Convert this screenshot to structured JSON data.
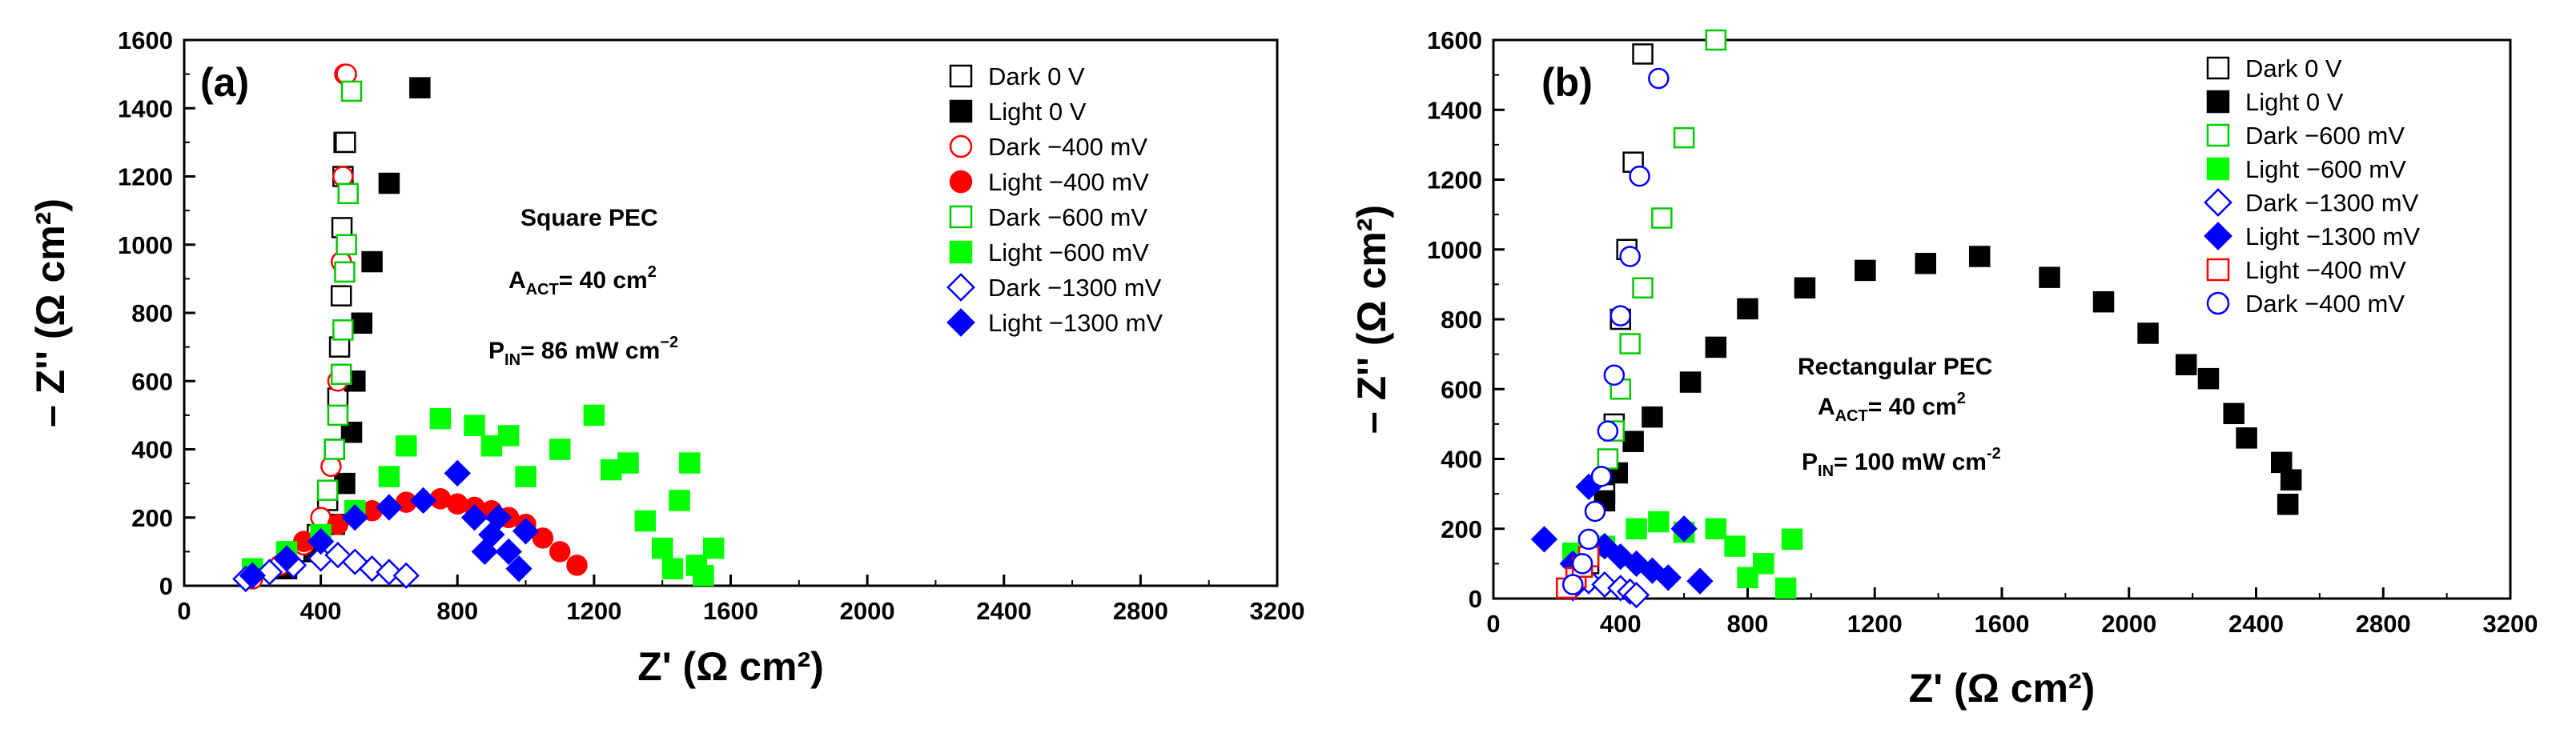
{
  "chart_data": [
    {
      "type": "scatter",
      "panel_label": "(a)",
      "xlabel": "Z' (Ω cm²)",
      "ylabel": "– Z'' (Ω cm²)",
      "xlim": [
        0,
        3200
      ],
      "ylim": [
        0,
        1600
      ],
      "xticks": [
        "0",
        "400",
        "800",
        "1200",
        "1600",
        "2000",
        "2400",
        "2800",
        "3200"
      ],
      "yticks": [
        "0",
        "200",
        "400",
        "600",
        "800",
        "1000",
        "1200",
        "1400",
        "1600"
      ],
      "grid": false,
      "legend_position": "top-right",
      "annotations": [
        {
          "text": "Square PEC"
        },
        {
          "prefix": "A",
          "sub": "ACT",
          "suffix": "= 40 cm",
          "sup": "2"
        },
        {
          "prefix": "P",
          "sub": "IN",
          "suffix": "= 86 mW cm",
          "sup": "−2"
        }
      ],
      "series": [
        {
          "name": "Dark 0 V",
          "marker": "square",
          "filled": false,
          "color": "#000000",
          "x": [
            290,
            350,
            390,
            420,
            440,
            450,
            455,
            460,
            462,
            465,
            468,
            472
          ],
          "y": [
            50,
            100,
            150,
            250,
            400,
            550,
            700,
            850,
            1050,
            1200,
            1300,
            1300
          ]
        },
        {
          "name": "Light 0 V",
          "marker": "square",
          "filled": true,
          "color": "#000000",
          "x": [
            300,
            380,
            440,
            470,
            490,
            500,
            520,
            550,
            600,
            690
          ],
          "y": [
            50,
            100,
            180,
            300,
            450,
            600,
            770,
            950,
            1180,
            1460
          ]
        },
        {
          "name": "Dark −400 mV",
          "marker": "circle",
          "filled": false,
          "color": "#ff0000",
          "x": [
            200,
            280,
            350,
            400,
            430,
            450,
            460,
            465,
            470,
            475
          ],
          "y": [
            20,
            60,
            120,
            200,
            350,
            600,
            950,
            1200,
            1500,
            1500
          ]
        },
        {
          "name": "Light −400 mV",
          "marker": "circle",
          "filled": true,
          "color": "#ff0000",
          "x": [
            350,
            450,
            550,
            650,
            750,
            800,
            850,
            900,
            950,
            1000,
            1050,
            1100,
            1150
          ],
          "y": [
            130,
            180,
            220,
            245,
            255,
            240,
            230,
            220,
            200,
            180,
            140,
            100,
            60
          ]
        },
        {
          "name": "Dark −600 mV",
          "marker": "square",
          "filled": false,
          "color": "#00cc00",
          "x": [
            420,
            440,
            450,
            460,
            465,
            470,
            475,
            480,
            490
          ],
          "y": [
            280,
            400,
            500,
            620,
            750,
            920,
            1000,
            1150,
            1450
          ]
        },
        {
          "name": "Light −600 mV",
          "marker": "square",
          "filled": true,
          "color": "#00ff00",
          "x": [
            200,
            300,
            400,
            500,
            600,
            650,
            750,
            850,
            900,
            950,
            1000,
            1100,
            1200,
            1250,
            1300,
            1350,
            1400,
            1430,
            1450,
            1480,
            1500,
            1520,
            1550
          ],
          "y": [
            50,
            100,
            150,
            220,
            320,
            410,
            490,
            470,
            410,
            440,
            320,
            400,
            500,
            340,
            360,
            190,
            110,
            50,
            250,
            360,
            60,
            30,
            110
          ]
        },
        {
          "name": "Dark −1300 mV",
          "marker": "diamond",
          "filled": false,
          "color": "#0000ff",
          "x": [
            180,
            250,
            320,
            400,
            450,
            500,
            550,
            600,
            650
          ],
          "y": [
            20,
            40,
            60,
            80,
            90,
            70,
            50,
            40,
            30
          ]
        },
        {
          "name": "Light −1300 mV",
          "marker": "diamond",
          "filled": true,
          "color": "#0000ff",
          "x": [
            200,
            300,
            400,
            500,
            600,
            700,
            800,
            850,
            880,
            900,
            920,
            950,
            980,
            1000
          ],
          "y": [
            30,
            80,
            130,
            200,
            230,
            250,
            330,
            200,
            100,
            150,
            200,
            100,
            50,
            160
          ]
        }
      ]
    },
    {
      "type": "scatter",
      "panel_label": "(b)",
      "xlabel": "Z' (Ω cm²)",
      "ylabel": "– Z'' (Ω cm²)",
      "xlim": [
        0,
        3200
      ],
      "ylim": [
        0,
        1600
      ],
      "xticks": [
        "0",
        "400",
        "800",
        "1200",
        "1600",
        "2000",
        "2400",
        "2800",
        "3200"
      ],
      "yticks": [
        "0",
        "200",
        "400",
        "600",
        "800",
        "1000",
        "1200",
        "1400",
        "1600"
      ],
      "grid": false,
      "legend_position": "top-right",
      "annotations": [
        {
          "text": "Rectangular PEC"
        },
        {
          "prefix": "A",
          "sub": "ACT",
          "suffix": "= 40 cm",
          "sup": "2"
        },
        {
          "prefix": "P",
          "sub": "IN",
          "suffix": "= 100 mW cm",
          "sup": "-2"
        }
      ],
      "series": [
        {
          "name": "Dark 0 V",
          "marker": "square",
          "filled": false,
          "color": "#000000",
          "x": [
            300,
            350,
            380,
            400,
            420,
            440,
            470
          ],
          "y": [
            100,
            300,
            500,
            800,
            1000,
            1250,
            1560
          ]
        },
        {
          "name": "Light 0 V",
          "marker": "square",
          "filled": true,
          "color": "#000000",
          "x": [
            300,
            350,
            390,
            440,
            500,
            620,
            700,
            800,
            980,
            1170,
            1360,
            1530,
            1750,
            1920,
            2060,
            2180,
            2250,
            2330,
            2370,
            2480,
            2500,
            2510
          ],
          "y": [
            150,
            280,
            360,
            450,
            520,
            620,
            720,
            830,
            890,
            940,
            960,
            980,
            920,
            850,
            760,
            670,
            630,
            530,
            460,
            390,
            270,
            340
          ]
        },
        {
          "name": "Dark −600 mV",
          "marker": "square",
          "filled": false,
          "color": "#00cc00",
          "x": [
            360,
            380,
            400,
            430,
            470,
            530,
            600,
            700
          ],
          "y": [
            400,
            480,
            600,
            730,
            890,
            1090,
            1320,
            1600
          ]
        },
        {
          "name": "Light −600 mV",
          "marker": "square",
          "filled": true,
          "color": "#00ff00",
          "x": [
            250,
            350,
            450,
            520,
            600,
            700,
            760,
            800,
            850,
            920,
            940
          ],
          "y": [
            130,
            150,
            200,
            220,
            190,
            200,
            150,
            60,
            100,
            30,
            170
          ]
        },
        {
          "name": "Dark −1300 mV",
          "marker": "diamond",
          "filled": false,
          "color": "#0000ff",
          "x": [
            250,
            300,
            350,
            400,
            430,
            450
          ],
          "y": [
            30,
            50,
            40,
            30,
            20,
            10
          ]
        },
        {
          "name": "Light −1300 mV",
          "marker": "diamond",
          "filled": true,
          "color": "#0000ff",
          "x": [
            160,
            250,
            300,
            350,
            400,
            450,
            500,
            550,
            600,
            650
          ],
          "y": [
            170,
            100,
            320,
            150,
            120,
            100,
            80,
            60,
            200,
            50
          ]
        },
        {
          "name": "Light −400 mV",
          "marker": "square",
          "filled": false,
          "color": "#ff0000",
          "x": [
            230,
            260,
            280,
            300
          ],
          "y": [
            30,
            60,
            90,
            120
          ]
        },
        {
          "name": "Dark −400 mV",
          "marker": "circle",
          "filled": false,
          "color": "#0000ff",
          "x": [
            250,
            280,
            300,
            320,
            340,
            360,
            380,
            400,
            430,
            460,
            520
          ],
          "y": [
            40,
            100,
            170,
            250,
            350,
            480,
            640,
            810,
            980,
            1210,
            1490
          ]
        }
      ]
    }
  ]
}
